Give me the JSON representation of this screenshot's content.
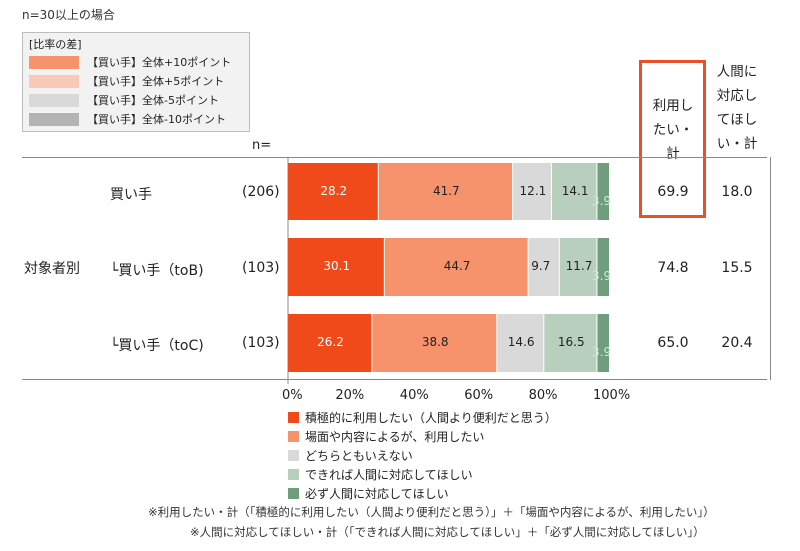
{
  "note": "n=30以上の場合",
  "diff_key": {
    "title": "[比率の差]",
    "items": [
      {
        "label": "【買い手】全体+10ポイント",
        "color": "#f6936d"
      },
      {
        "label": "【買い手】全体+5ポイント",
        "color": "#f9cbb7"
      },
      {
        "label": "【買い手】全体-5ポイント",
        "color": "#d9d9d9"
      },
      {
        "label": "【買い手】全体-10ポイント",
        "color": "#b3b3b3"
      }
    ]
  },
  "n_label": "n=",
  "group_label": "対象者別",
  "column_headers": {
    "use_total": [
      "利用し",
      "たい・",
      "計"
    ],
    "human_total": [
      "人間に",
      "対応し",
      "てほし",
      "い・計"
    ]
  },
  "highlight_color": "#e8502a",
  "chart_data": {
    "type": "stacked-bar-horizontal",
    "xlim": [
      0,
      100
    ],
    "x_ticks": [
      "0%",
      "20%",
      "40%",
      "60%",
      "80%",
      "100%"
    ],
    "categories": [
      "買い手",
      "└買い手（toB)",
      "└買い手（toC)"
    ],
    "n": [
      "(206)",
      "(103)",
      "(103)"
    ],
    "series": [
      {
        "name": "積極的に利用したい（人間より便利だと思う）",
        "color": "#f04a1a",
        "text_color": "#ffffff",
        "values": [
          28.2,
          30.1,
          26.2
        ]
      },
      {
        "name": "場面や内容によるが、利用したい",
        "color": "#f6936d",
        "text_color": "#222222",
        "values": [
          41.7,
          44.7,
          38.8
        ]
      },
      {
        "name": "どちらともいえない",
        "color": "#d9d9d9",
        "text_color": "#222222",
        "values": [
          12.1,
          9.7,
          14.6
        ]
      },
      {
        "name": "できれば人間に対応してほしい",
        "color": "#b9cfbe",
        "text_color": "#222222",
        "values": [
          14.1,
          11.7,
          16.5
        ]
      },
      {
        "name": "必ず人間に対応してほしい",
        "color": "#6f9e7c",
        "text_color": "#d8e6dc",
        "values": [
          3.9,
          3.9,
          3.9
        ]
      }
    ],
    "use_total": [
      "69.9",
      "74.8",
      "65.0"
    ],
    "human_total": [
      "18.0",
      "15.5",
      "20.4"
    ]
  },
  "footnotes": [
    "※利用したい・計（「積極的に利用したい（人間より便利だと思う）」＋「場面や内容によるが、利用したい」）",
    "※人間に対応してほしい・計（「できれば人間に対応してほしい」＋「必ず人間に対応してほしい」）"
  ]
}
